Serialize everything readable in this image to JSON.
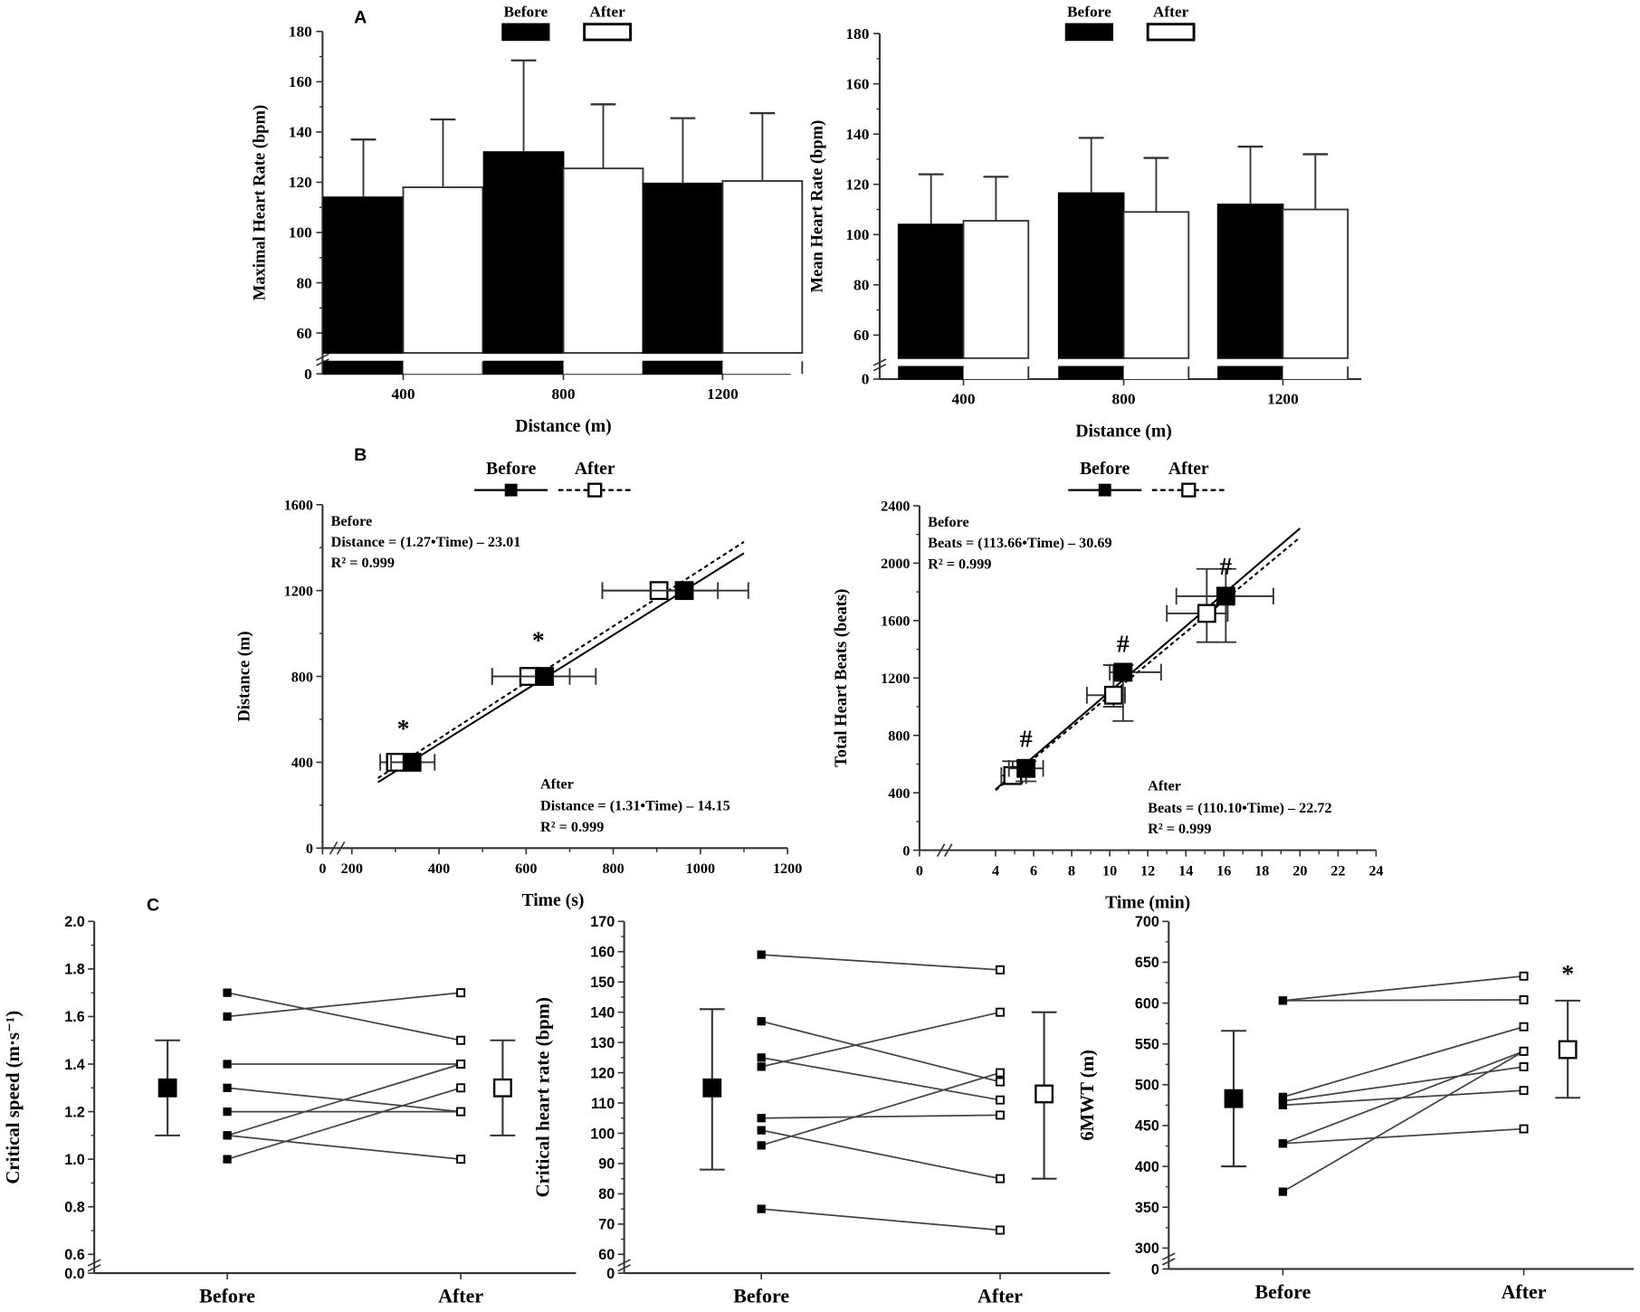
{
  "panel_labels": {
    "a": "A",
    "b": "B",
    "c": "C"
  },
  "colors": {
    "ink": "#000000",
    "axis": "#333333",
    "line": "#444444",
    "bg": "#ffffff"
  },
  "chart_data": [
    {
      "id": "maxhr",
      "type": "bar",
      "panel": "A",
      "title": "",
      "xlabel": "Distance (m)",
      "ylabel": "Maximal Heart Rate (bpm)",
      "categories": [
        "400",
        "800",
        "1200"
      ],
      "yticks": [
        "0",
        "60",
        "80",
        "100",
        "120",
        "140",
        "160",
        "180"
      ],
      "ylim": [
        50,
        180
      ],
      "axis_break": true,
      "legend": {
        "placement": "top",
        "entries": [
          "Before",
          "After"
        ]
      },
      "series": [
        {
          "name": "Before",
          "values": [
            114,
            132,
            119.5
          ],
          "sd_upper": [
            137,
            168.5,
            145.5
          ]
        },
        {
          "name": "After",
          "values": [
            118,
            125.5,
            120.5
          ],
          "sd_upper": [
            145,
            151,
            147.5
          ]
        }
      ]
    },
    {
      "id": "meanhr",
      "type": "bar",
      "panel": "A",
      "title": "",
      "xlabel": "Distance (m)",
      "ylabel": "Mean Heart Rate (bpm)",
      "categories": [
        "400",
        "800",
        "1200"
      ],
      "yticks": [
        "0",
        "60",
        "80",
        "100",
        "120",
        "140",
        "160",
        "180"
      ],
      "ylim": [
        50,
        180
      ],
      "axis_break": true,
      "legend": {
        "placement": "top",
        "entries": [
          "Before",
          "After"
        ]
      },
      "series": [
        {
          "name": "Before",
          "values": [
            104,
            116.5,
            112
          ],
          "sd_upper": [
            124,
            138.5,
            135
          ]
        },
        {
          "name": "After",
          "values": [
            105.5,
            109,
            110
          ],
          "sd_upper": [
            123,
            130.5,
            132
          ]
        }
      ]
    },
    {
      "id": "distance",
      "type": "scatter",
      "panel": "B",
      "xlabel": "Time (s)",
      "ylabel": "Distance (m)",
      "xticks": [
        "0",
        "200",
        "400",
        "600",
        "800",
        "1000",
        "1200"
      ],
      "yticks": [
        "0",
        "400",
        "800",
        "1200",
        "1600"
      ],
      "xlim": [
        200,
        1200
      ],
      "ylim": [
        0,
        1600
      ],
      "legend": {
        "placement": "top",
        "entries": [
          "Before",
          "After"
        ]
      },
      "series": [
        {
          "name": "Before",
          "line": "solid",
          "fit": {
            "slope": 1.27,
            "intercept": -23.01,
            "x_from": 260,
            "x_to": 1100
          },
          "points": [
            {
              "x": 338,
              "y": 400,
              "xerr": [
                290,
                390
              ]
            },
            {
              "x": 642,
              "y": 800,
              "xerr": [
                522,
                760
              ]
            },
            {
              "x": 963,
              "y": 1200,
              "xerr": [
                775,
                1110
              ]
            }
          ]
        },
        {
          "name": "After",
          "line": "dashed",
          "fit": {
            "slope": 1.31,
            "intercept": -14.15,
            "x_from": 260,
            "x_to": 1100
          },
          "points": [
            {
              "x": 300,
              "y": 400,
              "xerr": [
                265,
                330
              ]
            },
            {
              "x": 606,
              "y": 800,
              "xerr": [
                522,
                700
              ]
            },
            {
              "x": 905,
              "y": 1200,
              "xerr": [
                775,
                1040
              ]
            }
          ]
        }
      ],
      "markers": [
        {
          "x": 318,
          "y": 520,
          "text": "*"
        },
        {
          "x": 628,
          "y": 930,
          "text": "*"
        }
      ],
      "annotations": {
        "before": {
          "title": "Before",
          "eq": "Distance = (1.27•Time) – 23.01",
          "r2": "R² = 0.999"
        },
        "after": {
          "title": "After",
          "eq": "Distance = (1.31•Time) – 14.15",
          "r2": "R² = 0.999"
        }
      }
    },
    {
      "id": "beats",
      "type": "scatter",
      "panel": "B",
      "xlabel": "Time (min)",
      "ylabel": "Total Heart Beats (beats)",
      "xticks": [
        "0",
        "4",
        "6",
        "8",
        "10",
        "12",
        "14",
        "16",
        "18",
        "20",
        "22",
        "24"
      ],
      "yticks": [
        "0",
        "400",
        "800",
        "1200",
        "1600",
        "2000",
        "2400"
      ],
      "xlim": [
        0,
        24
      ],
      "ylim": [
        0,
        2400
      ],
      "legend": {
        "placement": "top",
        "entries": [
          "Before",
          "After"
        ]
      },
      "series": [
        {
          "name": "Before",
          "line": "solid",
          "fit": {
            "slope": 113.66,
            "intercept": -30.69,
            "x_from": 4,
            "x_to": 20
          },
          "points": [
            {
              "x": 5.6,
              "y": 570,
              "xerr": [
                4.7,
                6.5
              ],
              "yerr": [
                480,
                620
              ]
            },
            {
              "x": 10.7,
              "y": 1240,
              "xerr": [
                10.0,
                12.7
              ],
              "yerr": [
                900,
                1290
              ]
            },
            {
              "x": 16.1,
              "y": 1770,
              "xerr": [
                13.5,
                18.6
              ],
              "yerr": [
                1450,
                1960
              ]
            }
          ]
        },
        {
          "name": "After",
          "line": "dashed",
          "fit": {
            "slope": 110.1,
            "intercept": -22.72,
            "x_from": 4,
            "x_to": 20
          },
          "points": [
            {
              "x": 4.9,
              "y": 520,
              "xerr": [
                4.3,
                5.6
              ],
              "yerr": [
                470,
                620
              ]
            },
            {
              "x": 10.2,
              "y": 1080,
              "xerr": [
                8.8,
                10.8
              ],
              "yerr": [
                1000,
                1290
              ]
            },
            {
              "x": 15.1,
              "y": 1650,
              "xerr": [
                13.0,
                16.2
              ],
              "yerr": [
                1450,
                1960
              ]
            }
          ]
        }
      ],
      "markers": [
        {
          "x": 5.6,
          "y": 720,
          "text": "#"
        },
        {
          "x": 10.7,
          "y": 1380,
          "text": "#"
        },
        {
          "x": 16.1,
          "y": 1920,
          "text": "#"
        }
      ],
      "annotations": {
        "before": {
          "title": "Before",
          "eq": "Beats = (113.66•Time) – 30.69",
          "r2": "R² = 0.999"
        },
        "after": {
          "title": "After",
          "eq": "Beats = (110.10•Time) – 22.72",
          "r2": "R² = 0.999"
        }
      }
    },
    {
      "id": "cs",
      "type": "line",
      "panel": "C",
      "xlabel": "",
      "ylabel": "Critical speed (m·s⁻¹)",
      "categories": [
        "Before",
        "After"
      ],
      "yticks": [
        "0.0",
        "0.6",
        "0.8",
        "1.0",
        "1.2",
        "1.4",
        "1.6",
        "1.8",
        "2.0"
      ],
      "ylim": [
        0.6,
        2.0
      ],
      "axis_break": true,
      "pairs": [
        [
          1.7,
          1.5
        ],
        [
          1.6,
          1.7
        ],
        [
          1.4,
          1.4
        ],
        [
          1.3,
          1.2
        ],
        [
          1.2,
          1.2
        ],
        [
          1.1,
          1.4
        ],
        [
          1.1,
          1.0
        ],
        [
          1.0,
          1.3
        ]
      ],
      "summary": {
        "before": {
          "mean": 1.3,
          "low": 1.1,
          "high": 1.5
        },
        "after": {
          "mean": 1.3,
          "low": 1.1,
          "high": 1.5
        }
      },
      "significance": ""
    },
    {
      "id": "chr",
      "type": "line",
      "panel": "C",
      "xlabel": "",
      "ylabel": "Critical heart rate (bpm)",
      "categories": [
        "Before",
        "After"
      ],
      "yticks": [
        "0",
        "60",
        "70",
        "80",
        "90",
        "100",
        "110",
        "120",
        "130",
        "140",
        "150",
        "160",
        "170"
      ],
      "ylim": [
        60,
        170
      ],
      "axis_break": true,
      "pairs": [
        [
          159,
          154
        ],
        [
          137,
          117
        ],
        [
          125,
          111
        ],
        [
          122,
          140
        ],
        [
          105,
          106
        ],
        [
          101,
          85
        ],
        [
          96,
          120
        ],
        [
          75,
          68
        ]
      ],
      "summary": {
        "before": {
          "mean": 115,
          "low": 88,
          "high": 141
        },
        "after": {
          "mean": 113,
          "low": 85,
          "high": 140
        }
      },
      "significance": ""
    },
    {
      "id": "6mwt",
      "type": "line",
      "panel": "C",
      "xlabel": "",
      "ylabel": "6MWT (m)",
      "categories": [
        "Before",
        "After"
      ],
      "yticks": [
        "0",
        "300",
        "350",
        "400",
        "450",
        "500",
        "550",
        "600",
        "650",
        "700"
      ],
      "ylim": [
        300,
        700
      ],
      "axis_break": true,
      "pairs": [
        [
          603,
          633
        ],
        [
          603,
          604
        ],
        [
          485,
          571
        ],
        [
          480,
          522
        ],
        [
          475,
          493
        ],
        [
          428,
          541
        ],
        [
          428,
          446
        ],
        [
          369,
          541
        ]
      ],
      "summary": {
        "before": {
          "mean": 483,
          "low": 400,
          "high": 566
        },
        "after": {
          "mean": 543,
          "low": 484,
          "high": 603
        }
      },
      "significance": "*"
    }
  ]
}
